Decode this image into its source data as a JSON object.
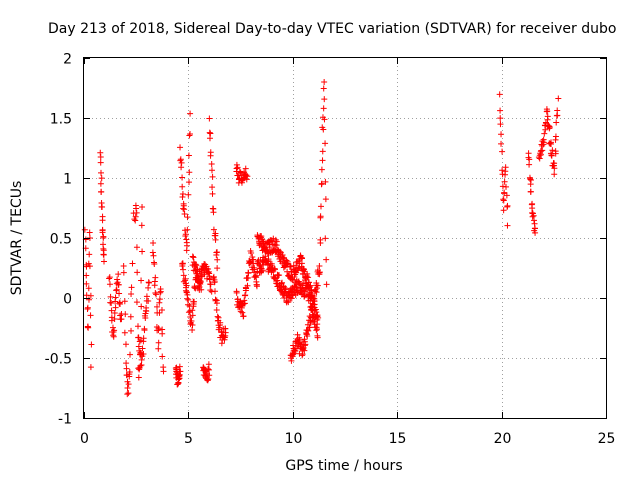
{
  "chart_data": {
    "type": "scatter",
    "title": "Day 213 of 2018, Sidereal Day-to-day VTEC variation (SDTVAR) for receiver dubo",
    "xlabel": "GPS time / hours",
    "ylabel": "SDTVAR / TECUs",
    "xlim": [
      0,
      25
    ],
    "ylim": [
      -1,
      2
    ],
    "xticks": [
      0,
      5,
      10,
      15,
      20,
      25
    ],
    "xtick_labels": [
      "0",
      "5",
      "10",
      "15",
      "20",
      "25"
    ],
    "yticks": [
      -1,
      -0.5,
      0,
      0.5,
      1,
      1.5,
      2
    ],
    "ytick_labels": [
      "-1",
      "-0.5",
      "0",
      "0.5",
      "1",
      "1.5",
      "2"
    ],
    "grid": true,
    "marker": "+",
    "color": "#ff0000",
    "segments": [
      {
        "t_start": 0.05,
        "t_end": 0.35,
        "values": [
          0.55,
          0.1,
          -0.3,
          0.6,
          -0.6
        ]
      },
      {
        "t_start": 0.8,
        "t_end": 0.95,
        "values": [
          1.2,
          0.65,
          0.3
        ]
      },
      {
        "t_start": 1.2,
        "t_end": 1.8,
        "values": [
          0.2,
          -0.35,
          0.2,
          -0.2
        ]
      },
      {
        "t_start": 1.9,
        "t_end": 2.3,
        "values": [
          0.3,
          -0.5,
          -0.8,
          -0.6,
          0.3
        ]
      },
      {
        "t_start": 2.4,
        "t_end": 2.8,
        "values": [
          0.65,
          0.75,
          -0.65,
          -0.5,
          0.8
        ]
      },
      {
        "t_start": 2.6,
        "t_end": 3.1,
        "values": [
          -0.3,
          -0.55,
          -0.15,
          0.1
        ]
      },
      {
        "t_start": 3.3,
        "t_end": 3.8,
        "values": [
          0.4,
          0.1,
          -0.4,
          0.15,
          -0.65
        ]
      },
      {
        "t_start": 4.4,
        "t_end": 4.6,
        "values": [
          -0.55,
          -0.7,
          -0.6
        ]
      },
      {
        "t_start": 4.6,
        "t_end": 5.1,
        "values": [
          1.2,
          0.8,
          0.35,
          1.55
        ]
      },
      {
        "t_start": 4.7,
        "t_end": 5.6,
        "values": [
          0.3,
          0.05,
          -0.25,
          0.2,
          0.05
        ]
      },
      {
        "t_start": 5.2,
        "t_end": 6.1,
        "values": [
          0.3,
          0.15,
          0.25,
          0.1
        ]
      },
      {
        "t_start": 5.7,
        "t_end": 6.0,
        "values": [
          -0.55,
          -0.65,
          -0.6
        ]
      },
      {
        "t_start": 6.0,
        "t_end": 6.4,
        "values": [
          1.5,
          1.0,
          0.55,
          0.3
        ]
      },
      {
        "t_start": 6.2,
        "t_end": 6.8,
        "values": [
          0.2,
          -0.15,
          -0.35,
          -0.25
        ]
      },
      {
        "t_start": 7.3,
        "t_end": 7.8,
        "values": [
          1.1,
          0.95,
          1.05
        ]
      },
      {
        "t_start": 7.3,
        "t_end": 8.3,
        "values": [
          0.0,
          -0.1,
          0.35,
          0.15
        ]
      },
      {
        "t_start": 8.3,
        "t_end": 11.2,
        "values": [
          0.5,
          0.4,
          0.45,
          0.3,
          0.2,
          0.3,
          0.1,
          -0.2
        ]
      },
      {
        "t_start": 8.3,
        "t_end": 11.2,
        "values": [
          0.25,
          0.3,
          0.15,
          0.0,
          0.1,
          0.05,
          -0.3
        ]
      },
      {
        "t_start": 9.9,
        "t_end": 11.3,
        "values": [
          -0.5,
          -0.35,
          -0.45,
          -0.25,
          0.0,
          0.25
        ]
      },
      {
        "t_start": 11.3,
        "t_end": 11.6,
        "values": [
          0.45,
          1.15,
          1.85,
          0.1
        ]
      },
      {
        "t_start": 19.9,
        "t_end": 20.3,
        "values": [
          1.65,
          1.2,
          0.75,
          1.1,
          0.65
        ]
      },
      {
        "t_start": 21.3,
        "t_end": 21.6,
        "values": [
          1.2,
          0.9,
          0.65,
          0.55
        ]
      },
      {
        "t_start": 21.8,
        "t_end": 22.7,
        "values": [
          1.2,
          1.3,
          1.55,
          1.3,
          1.05,
          1.65
        ]
      }
    ]
  }
}
